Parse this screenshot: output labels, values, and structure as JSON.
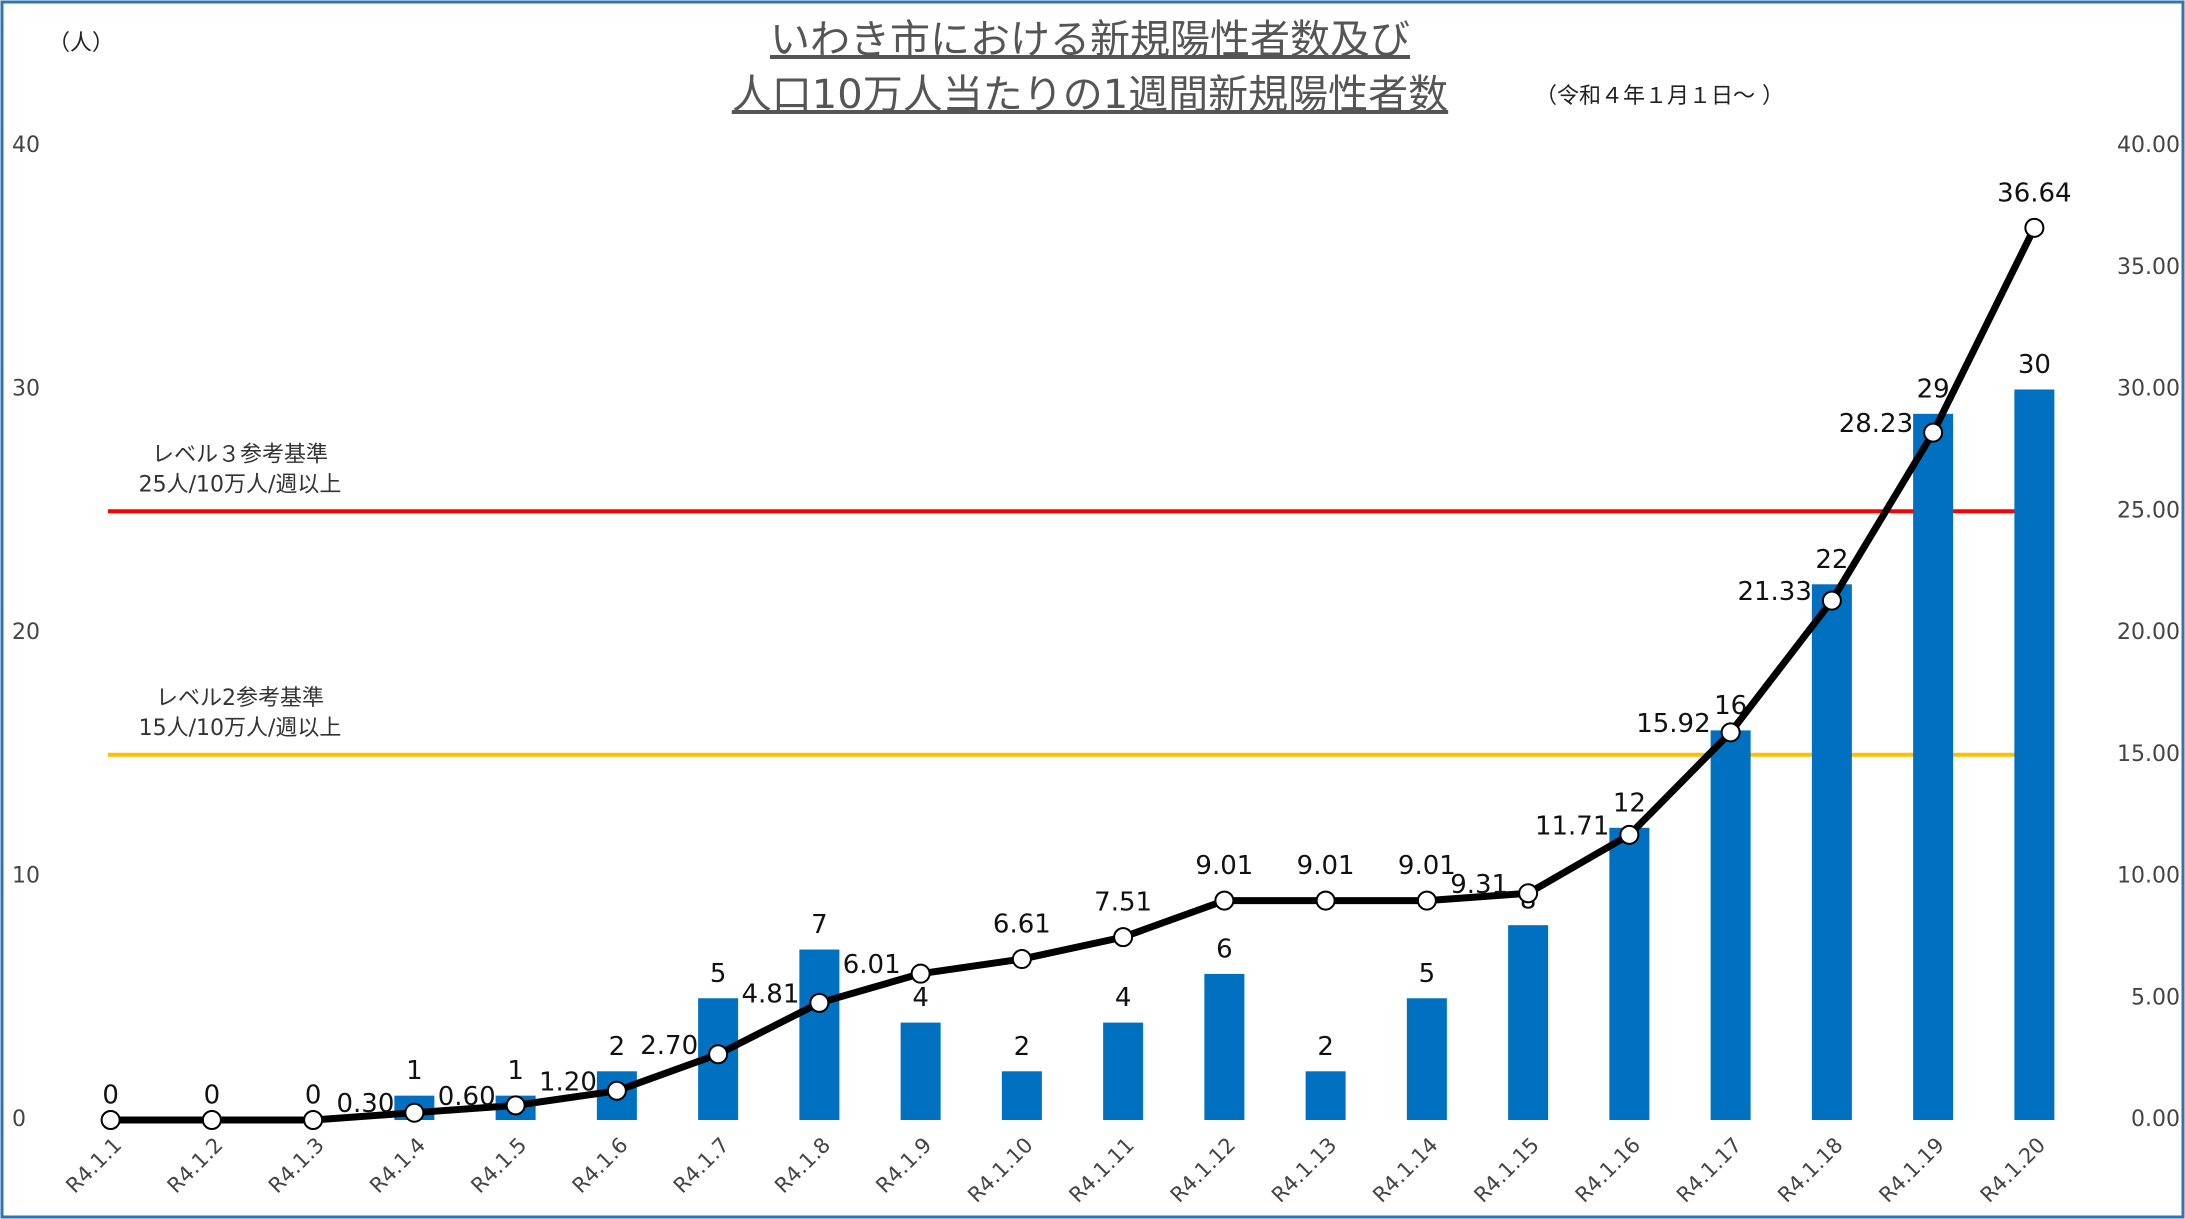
{
  "chart_data": {
    "type": "bar",
    "title_lines": [
      "いわき市における新規陽性者数及び",
      "人口10万人当たりの1週間新規陽性者数"
    ],
    "subtitle": "（令和４年１月１日～ ）",
    "y_axis_label": "（人）",
    "categories": [
      "R4.1.1",
      "R4.1.2",
      "R4.1.3",
      "R4.1.4",
      "R4.1.5",
      "R4.1.6",
      "R4.1.7",
      "R4.1.8",
      "R4.1.9",
      "R4.1.10",
      "R4.1.11",
      "R4.1.12",
      "R4.1.13",
      "R4.1.14",
      "R4.1.15",
      "R4.1.16",
      "R4.1.17",
      "R4.1.18",
      "R4.1.19",
      "R4.1.20"
    ],
    "series": [
      {
        "type": "bar",
        "color": "#0070c0",
        "values": [
          0,
          0,
          0,
          1,
          1,
          2,
          5,
          7,
          4,
          2,
          4,
          6,
          2,
          5,
          8,
          12,
          16,
          22,
          29,
          30
        ]
      },
      {
        "type": "line",
        "axis": "y2",
        "color": "#000000",
        "values": [
          0,
          0,
          0,
          0.3,
          0.6,
          1.2,
          2.7,
          4.81,
          6.01,
          6.61,
          7.51,
          9.01,
          9.01,
          9.01,
          9.31,
          11.71,
          15.92,
          21.33,
          28.23,
          36.64
        ],
        "value_labels": [
          null,
          null,
          null,
          "0.30",
          "0.60",
          "1.20",
          "2.70",
          "4.81",
          "6.01",
          "6.61",
          "7.51",
          "9.01",
          "9.01",
          "9.01",
          "9.31",
          "11.71",
          "15.92",
          "21.33",
          "28.23",
          "36.64"
        ]
      }
    ],
    "ylim": [
      0,
      40
    ],
    "yticks": [
      0,
      10,
      20,
      30,
      40
    ],
    "y2lim": [
      0,
      40
    ],
    "y2ticks": [
      {
        "value": 0,
        "label": "0.00"
      },
      {
        "value": 5,
        "label": "5.00"
      },
      {
        "value": 10,
        "label": "10.00"
      },
      {
        "value": 15,
        "label": "15.00"
      },
      {
        "value": 20,
        "label": "20.00"
      },
      {
        "value": 25,
        "label": "25.00"
      },
      {
        "value": 30,
        "label": "30.00"
      },
      {
        "value": 35,
        "label": "35.00"
      },
      {
        "value": 40,
        "label": "40.00"
      }
    ],
    "reference_lines": [
      {
        "value": 25,
        "color": "#ff0000",
        "label_lines": [
          "レベル３参考基準",
          "25人/10万人/週以上"
        ]
      },
      {
        "value": 15,
        "color": "#ffc000",
        "label_lines": [
          "レベル2参考基準",
          "15人/10万人/週以上"
        ]
      }
    ]
  }
}
